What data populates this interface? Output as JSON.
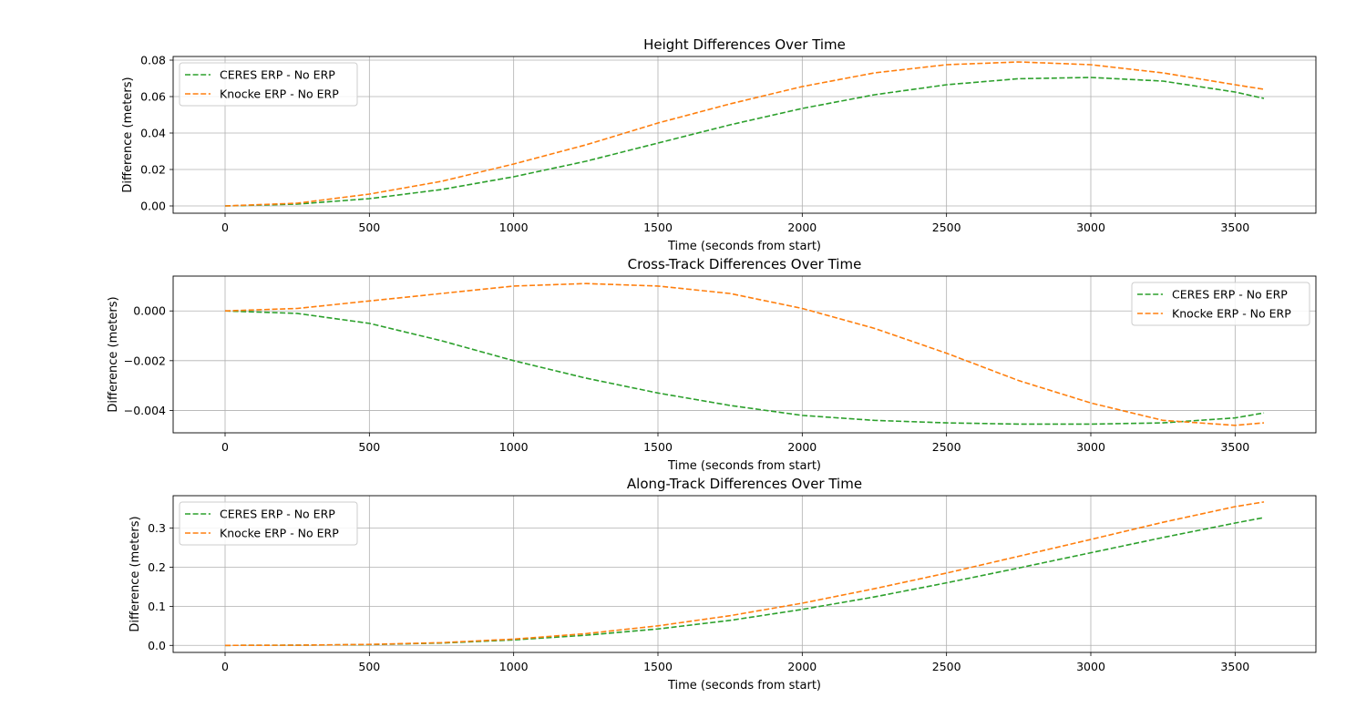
{
  "chart_data": [
    {
      "type": "line",
      "title": "Height Differences Over Time",
      "xlabel": "Time (seconds from start)",
      "ylabel": "Difference (meters)",
      "xlim": [
        -180,
        3780
      ],
      "ylim": [
        -0.004,
        0.082
      ],
      "xticks": [
        0,
        500,
        1000,
        1500,
        2000,
        2500,
        3000,
        3500
      ],
      "xtick_labels": [
        "0",
        "500",
        "1000",
        "1500",
        "2000",
        "2500",
        "3000",
        "3500"
      ],
      "yticks": [
        0.0,
        0.02,
        0.04,
        0.06,
        0.08
      ],
      "ytick_labels": [
        "0.00",
        "0.02",
        "0.04",
        "0.06",
        "0.08"
      ],
      "grid": true,
      "legend_position": "upper-left",
      "series": [
        {
          "name": "CERES ERP - No ERP",
          "color": "#2ca02c",
          "style": "dashed",
          "x": [
            0,
            250,
            500,
            750,
            1000,
            1250,
            1500,
            1750,
            2000,
            2250,
            2500,
            2750,
            3000,
            3250,
            3500,
            3600
          ],
          "y": [
            0.0,
            0.001,
            0.004,
            0.009,
            0.016,
            0.0245,
            0.0345,
            0.0445,
            0.0535,
            0.061,
            0.0665,
            0.0698,
            0.0705,
            0.0685,
            0.0625,
            0.059
          ]
        },
        {
          "name": "Knocke ERP - No ERP",
          "color": "#ff7f0e",
          "style": "dashed",
          "x": [
            0,
            250,
            500,
            750,
            1000,
            1250,
            1500,
            1750,
            2000,
            2250,
            2500,
            2750,
            3000,
            3250,
            3500,
            3600
          ],
          "y": [
            0.0,
            0.0015,
            0.0065,
            0.0135,
            0.023,
            0.0335,
            0.0455,
            0.056,
            0.0655,
            0.073,
            0.0775,
            0.079,
            0.0775,
            0.073,
            0.0665,
            0.064
          ]
        }
      ]
    },
    {
      "type": "line",
      "title": "Cross-Track Differences Over Time",
      "xlabel": "Time (seconds from start)",
      "ylabel": "Difference (meters)",
      "xlim": [
        -180,
        3780
      ],
      "ylim": [
        -0.0049,
        0.0014
      ],
      "xticks": [
        0,
        500,
        1000,
        1500,
        2000,
        2500,
        3000,
        3500
      ],
      "xtick_labels": [
        "0",
        "500",
        "1000",
        "1500",
        "2000",
        "2500",
        "3000",
        "3500"
      ],
      "yticks": [
        -0.004,
        -0.002,
        0.0
      ],
      "ytick_labels": [
        "−0.004",
        "−0.002",
        "0.000"
      ],
      "grid": true,
      "legend_position": "upper-right",
      "series": [
        {
          "name": "CERES ERP - No ERP",
          "color": "#2ca02c",
          "style": "dashed",
          "x": [
            0,
            250,
            500,
            750,
            1000,
            1250,
            1500,
            1750,
            2000,
            2250,
            2500,
            2750,
            3000,
            3250,
            3500,
            3600
          ],
          "y": [
            0.0,
            -0.0001,
            -0.0005,
            -0.0012,
            -0.002,
            -0.0027,
            -0.0033,
            -0.0038,
            -0.0042,
            -0.0044,
            -0.0045,
            -0.00455,
            -0.00455,
            -0.0045,
            -0.0043,
            -0.0041
          ]
        },
        {
          "name": "Knocke ERP - No ERP",
          "color": "#ff7f0e",
          "style": "dashed",
          "x": [
            0,
            250,
            500,
            750,
            1000,
            1250,
            1500,
            1750,
            2000,
            2250,
            2500,
            2750,
            3000,
            3250,
            3500,
            3600
          ],
          "y": [
            0.0,
            0.0001,
            0.0004,
            0.0007,
            0.001,
            0.0011,
            0.001,
            0.0007,
            0.0001,
            -0.0007,
            -0.0017,
            -0.0028,
            -0.0037,
            -0.0044,
            -0.0046,
            -0.0045
          ]
        }
      ]
    },
    {
      "type": "line",
      "title": "Along-Track Differences Over Time",
      "xlabel": "Time (seconds from start)",
      "ylabel": "Difference (meters)",
      "xlim": [
        -180,
        3780
      ],
      "ylim": [
        -0.018,
        0.383
      ],
      "xticks": [
        0,
        500,
        1000,
        1500,
        2000,
        2500,
        3000,
        3500
      ],
      "xtick_labels": [
        "0",
        "500",
        "1000",
        "1500",
        "2000",
        "2500",
        "3000",
        "3500"
      ],
      "yticks": [
        0.0,
        0.1,
        0.2,
        0.3
      ],
      "ytick_labels": [
        "0.0",
        "0.1",
        "0.2",
        "0.3"
      ],
      "grid": true,
      "legend_position": "upper-left",
      "series": [
        {
          "name": "CERES ERP - No ERP",
          "color": "#2ca02c",
          "style": "dashed",
          "x": [
            0,
            250,
            500,
            750,
            1000,
            1250,
            1500,
            1750,
            2000,
            2250,
            2500,
            2750,
            3000,
            3250,
            3500,
            3600
          ],
          "y": [
            0.0,
            0.0005,
            0.002,
            0.006,
            0.014,
            0.026,
            0.042,
            0.064,
            0.092,
            0.124,
            0.16,
            0.198,
            0.237,
            0.276,
            0.313,
            0.327
          ]
        },
        {
          "name": "Knocke ERP - No ERP",
          "color": "#ff7f0e",
          "style": "dashed",
          "x": [
            0,
            250,
            500,
            750,
            1000,
            1250,
            1500,
            1750,
            2000,
            2250,
            2500,
            2750,
            3000,
            3250,
            3500,
            3600
          ],
          "y": [
            0.0,
            0.0005,
            0.0025,
            0.007,
            0.016,
            0.03,
            0.05,
            0.076,
            0.108,
            0.145,
            0.185,
            0.228,
            0.271,
            0.315,
            0.355,
            0.367
          ]
        }
      ]
    }
  ]
}
